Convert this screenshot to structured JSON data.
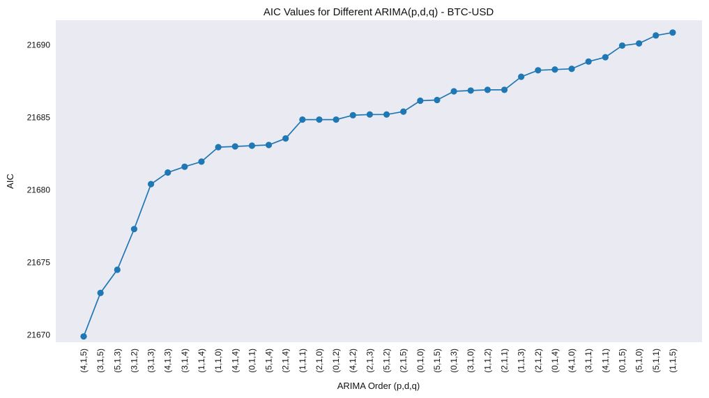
{
  "chart_data": {
    "type": "line",
    "title": "AIC Values for Different ARIMA(p,d,q) - BTC-USD",
    "xlabel": "ARIMA Order (p,d,q)",
    "ylabel": "AIC",
    "ylim": [
      21669.5,
      21691.7
    ],
    "yticks": [
      21670,
      21675,
      21680,
      21685,
      21690
    ],
    "grid": false,
    "legend": "none",
    "colors": {
      "plot_background": "#eaeaf2",
      "line": "#1f77b4",
      "marker": "#1f77b4"
    },
    "categories": [
      "(4,1,5)",
      "(3,1,5)",
      "(5,1,3)",
      "(3,1,2)",
      "(3,1,3)",
      "(4,1,3)",
      "(3,1,4)",
      "(1,1,4)",
      "(1,1,0)",
      "(4,1,4)",
      "(0,1,1)",
      "(5,1,4)",
      "(2,1,4)",
      "(1,1,1)",
      "(2,1,0)",
      "(0,1,2)",
      "(4,1,2)",
      "(2,1,3)",
      "(5,1,2)",
      "(2,1,5)",
      "(0,1,0)",
      "(5,1,5)",
      "(0,1,3)",
      "(3,1,0)",
      "(1,1,2)",
      "(2,1,1)",
      "(1,1,3)",
      "(2,1,2)",
      "(0,1,4)",
      "(4,1,0)",
      "(3,1,1)",
      "(4,1,1)",
      "(0,1,5)",
      "(5,1,0)",
      "(5,1,1)",
      "(1,1,5)"
    ],
    "values": [
      21669.9,
      21672.9,
      21674.5,
      21677.3,
      21680.4,
      21681.2,
      21681.6,
      21681.95,
      21682.95,
      21683.0,
      21683.05,
      21683.1,
      21683.55,
      21684.85,
      21684.85,
      21684.85,
      21685.15,
      21685.2,
      21685.2,
      21685.4,
      21686.15,
      21686.2,
      21686.8,
      21686.85,
      21686.9,
      21686.9,
      21687.8,
      21688.25,
      21688.3,
      21688.35,
      21688.85,
      21689.15,
      21689.95,
      21690.1,
      21690.65,
      21690.85
    ]
  }
}
